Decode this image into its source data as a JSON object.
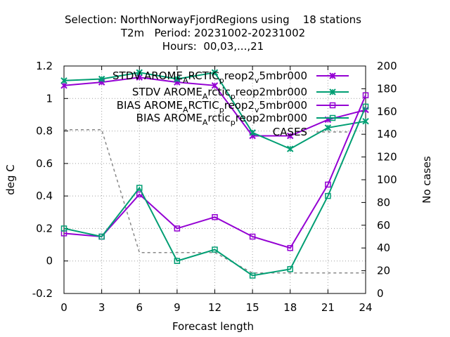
{
  "chart_data": {
    "type": "line",
    "title_lines": [
      "Selection: NorthNorwayFjordRegions using    18 stations",
      "T2m   Period: 20231002-20231002",
      "Hours:  00,03,...,21"
    ],
    "xlabel": "Forecast length",
    "ylabel": "deg C",
    "y2label": "No cases",
    "x": [
      0,
      3,
      6,
      9,
      12,
      15,
      18,
      21,
      24
    ],
    "xlim": [
      0,
      24
    ],
    "ylim": [
      -0.2,
      1.2
    ],
    "y2lim": [
      0,
      200
    ],
    "xticks": [
      "0",
      "3",
      "6",
      "9",
      "12",
      "15",
      "18",
      "21",
      "24"
    ],
    "yticks": [
      "-0.2",
      "0",
      "0.2",
      "0.4",
      "0.6",
      "0.8",
      "1",
      "1.2"
    ],
    "y2ticks": [
      "0",
      "20",
      "40",
      "60",
      "80",
      "100",
      "120",
      "140",
      "160",
      "180",
      "200"
    ],
    "grid": true,
    "legend_position": "top-right",
    "series": [
      {
        "name": "STDV AROME_ARCTIC_reop2_v5mbr000",
        "legend": {
          "parts": [
            "STDV AROME",
            "A",
            "RCTIC",
            "p",
            "reop2",
            "v",
            "5mbr000"
          ]
        },
        "color": "#9400d3",
        "marker": "x",
        "axis": "y",
        "values": [
          1.08,
          1.1,
          1.13,
          1.1,
          1.08,
          0.77,
          0.77,
          0.87,
          0.93
        ]
      },
      {
        "name": "STDV AROME_Arctic_reop2mbr000",
        "legend": {
          "parts": [
            "STDV AROME",
            "A",
            "rctic",
            "p",
            "reop2mbr000"
          ]
        },
        "color": "#009e73",
        "marker": "x",
        "axis": "y",
        "values": [
          1.11,
          1.12,
          1.16,
          1.12,
          1.16,
          0.79,
          0.69,
          0.82,
          0.86
        ]
      },
      {
        "name": "BIAS AROME_ARCTIC_reop2_v5mbr000",
        "legend": {
          "parts": [
            "BIAS AROME",
            "A",
            "RCTIC",
            "p",
            "reop2",
            "v",
            "5mbr000"
          ]
        },
        "color": "#9400d3",
        "marker": "square",
        "axis": "y",
        "values": [
          0.17,
          0.15,
          0.41,
          0.2,
          0.27,
          0.15,
          0.08,
          0.47,
          1.02
        ]
      },
      {
        "name": "BIAS AROME_Arctic_reop2mbr000",
        "legend": {
          "parts": [
            "BIAS AROME",
            "A",
            "rctic",
            "p",
            "reop2mbr000"
          ]
        },
        "color": "#009e73",
        "marker": "square",
        "axis": "y",
        "values": [
          0.2,
          0.15,
          0.45,
          0.0,
          0.07,
          -0.09,
          -0.05,
          0.4,
          0.95
        ]
      },
      {
        "name": "CASES",
        "legend": {
          "parts": [
            "CASES"
          ]
        },
        "color": "#888888",
        "marker": "none",
        "dashed": true,
        "axis": "y2",
        "values": [
          144,
          144,
          36,
          36,
          36,
          18,
          18,
          18,
          18
        ]
      }
    ]
  }
}
